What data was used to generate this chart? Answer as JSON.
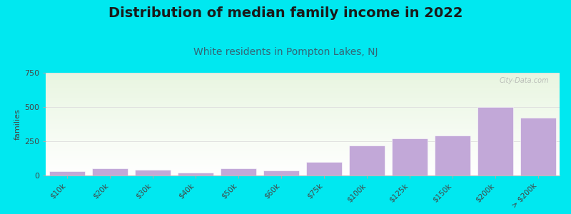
{
  "title": "Distribution of median family income in 2022",
  "subtitle": "White residents in Pompton Lakes, NJ",
  "ylabel": "families",
  "categories": [
    "$10k",
    "$20k",
    "$30k",
    "$40k",
    "$50k",
    "$60k",
    "$75k",
    "$100k",
    "$125k",
    "$150k",
    "$200k",
    "> $200k"
  ],
  "values": [
    30,
    50,
    40,
    20,
    50,
    35,
    100,
    220,
    270,
    290,
    500,
    420
  ],
  "bar_color": "#c2a8d8",
  "background_color": "#00e8f0",
  "title_color": "#1a1a1a",
  "subtitle_color": "#336677",
  "ylabel_color": "#444444",
  "tick_color": "#444444",
  "ylim": [
    0,
    750
  ],
  "yticks": [
    0,
    250,
    500,
    750
  ],
  "grid_color": "#dddddd",
  "watermark": "City-Data.com",
  "title_fontsize": 14,
  "subtitle_fontsize": 10,
  "ylabel_fontsize": 8,
  "plot_bg_color_top": "#e8f5e0",
  "plot_bg_color_bottom": "#ffffff"
}
